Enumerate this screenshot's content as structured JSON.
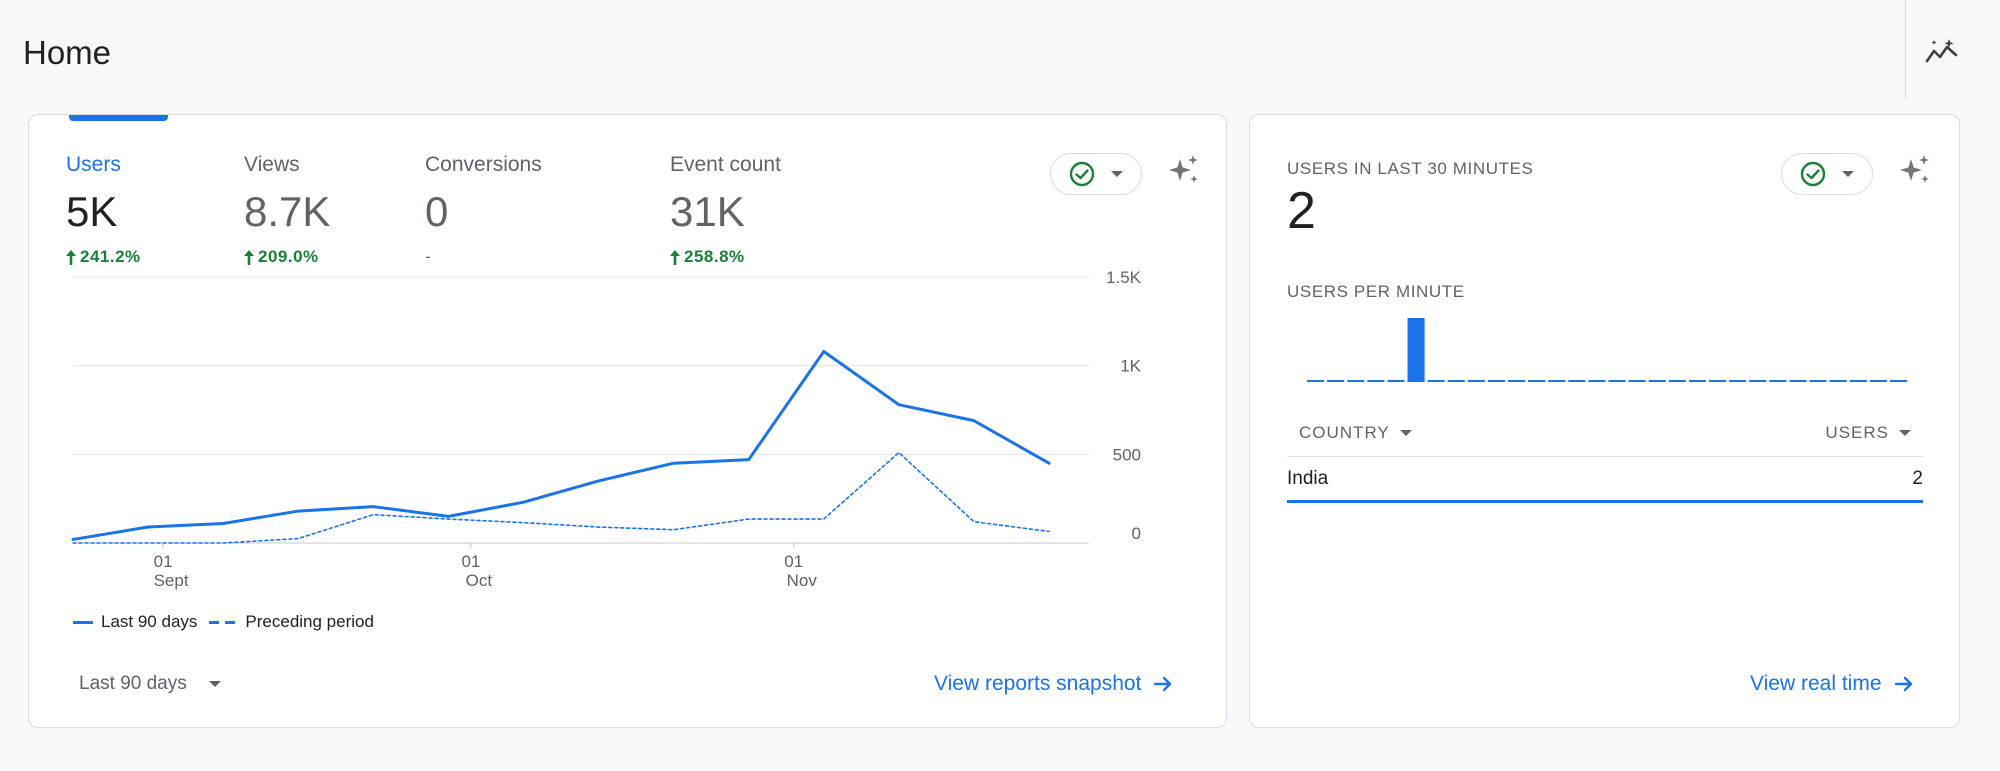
{
  "header": {
    "title": "Home",
    "insights_icon": "trending-sparkle-icon"
  },
  "overview": {
    "metrics": [
      {
        "label": "Users",
        "value": "5K",
        "change": "241.2%",
        "trend": "up",
        "active": true
      },
      {
        "label": "Views",
        "value": "8.7K",
        "change": "209.0%",
        "trend": "up",
        "active": false
      },
      {
        "label": "Conversions",
        "value": "0",
        "change": "-",
        "trend": "none",
        "active": false
      },
      {
        "label": "Event count",
        "value": "31K",
        "change": "258.8%",
        "trend": "up",
        "active": false
      }
    ],
    "status_icon": "check-circle-icon",
    "legend": {
      "current": "Last 90 days",
      "previous": "Preceding period"
    },
    "date_range": "Last 90 days",
    "view_link": "View reports snapshot"
  },
  "chart_data": {
    "type": "line",
    "x_tick_labels": [
      {
        "day": "01",
        "month": "Sept"
      },
      {
        "day": "01",
        "month": "Oct"
      },
      {
        "day": "01",
        "month": "Nov"
      }
    ],
    "y_tick_labels": [
      "1.5K",
      "1K",
      "500",
      "0"
    ],
    "ylim": [
      0,
      1500
    ],
    "grid": true,
    "legend_position": "bottom-left",
    "series": [
      {
        "name": "Last 90 days",
        "style": "solid",
        "color": "#1a73e8",
        "values": [
          20,
          90,
          110,
          180,
          205,
          150,
          230,
          350,
          450,
          470,
          1080,
          780,
          690,
          450
        ]
      },
      {
        "name": "Preceding period",
        "style": "dashed",
        "color": "#1a73e8",
        "values": [
          0,
          0,
          0,
          25,
          160,
          135,
          115,
          90,
          75,
          135,
          135,
          510,
          120,
          65
        ]
      }
    ]
  },
  "realtime": {
    "title": "USERS IN LAST 30 MINUTES",
    "value": "2",
    "per_minute_label": "USERS PER MINUTE",
    "per_minute_values": [
      0,
      0,
      0,
      0,
      0,
      2,
      0,
      0,
      0,
      0,
      0,
      0,
      0,
      0,
      0,
      0,
      0,
      0,
      0,
      0,
      0,
      0,
      0,
      0,
      0,
      0,
      0,
      0,
      0,
      0
    ],
    "table": {
      "col_country": "COUNTRY",
      "col_users": "USERS",
      "rows": [
        {
          "country": "India",
          "users": "2"
        }
      ]
    },
    "view_link": "View real time"
  }
}
